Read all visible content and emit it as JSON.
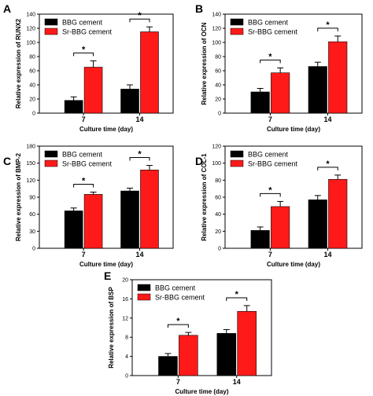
{
  "chart_data": [
    {
      "panel": "A",
      "type": "bar",
      "categories": [
        "7",
        "14"
      ],
      "xlabel": "Culture time (day)",
      "ylabel": "Relative expression of RUNX2",
      "ylim": [
        0,
        140
      ],
      "yticks": [
        0,
        20,
        40,
        60,
        80,
        100,
        120,
        140
      ],
      "series": [
        {
          "name": "BBG cement",
          "color": "#000000",
          "values": [
            18,
            34
          ],
          "errors": [
            5,
            6
          ]
        },
        {
          "name": "Sr-BBG cement",
          "color": "#ff1a1a",
          "values": [
            65,
            115
          ],
          "errors": [
            9,
            7
          ]
        }
      ],
      "significance": [
        {
          "category": "7",
          "mark": "*"
        },
        {
          "category": "14",
          "mark": "*"
        }
      ],
      "legend": "top-left"
    },
    {
      "panel": "B",
      "type": "bar",
      "categories": [
        "7",
        "14"
      ],
      "xlabel": "Culture time (day)",
      "ylabel": "Relative expression of OCN",
      "ylim": [
        0,
        140
      ],
      "yticks": [
        0,
        20,
        40,
        60,
        80,
        100,
        120,
        140
      ],
      "series": [
        {
          "name": "BBG cement",
          "color": "#000000",
          "values": [
            30,
            66
          ],
          "errors": [
            5,
            6
          ]
        },
        {
          "name": "Sr-BBG cement",
          "color": "#ff1a1a",
          "values": [
            57,
            101
          ],
          "errors": [
            7,
            8
          ]
        }
      ],
      "significance": [
        {
          "category": "7",
          "mark": "*"
        },
        {
          "category": "14",
          "mark": "*"
        }
      ],
      "legend": "top-left"
    },
    {
      "panel": "C",
      "type": "bar",
      "categories": [
        "7",
        "14"
      ],
      "xlabel": "Culture time (day)",
      "ylabel": "Relative expression of BMP-2",
      "ylim": [
        0,
        180
      ],
      "yticks": [
        0,
        30,
        60,
        90,
        120,
        150,
        180
      ],
      "series": [
        {
          "name": "BBG cement",
          "color": "#000000",
          "values": [
            66,
            101
          ],
          "errors": [
            5,
            5
          ]
        },
        {
          "name": "Sr-BBG cement",
          "color": "#ff1a1a",
          "values": [
            95,
            138
          ],
          "errors": [
            4,
            8
          ]
        }
      ],
      "significance": [
        {
          "category": "7",
          "mark": "*"
        },
        {
          "category": "14",
          "mark": "*"
        }
      ],
      "legend": "top-left"
    },
    {
      "panel": "D",
      "type": "bar",
      "categories": [
        "7",
        "14"
      ],
      "xlabel": "Culture time (day)",
      "ylabel": "Relative expression of COL-1",
      "ylim": [
        0,
        120
      ],
      "yticks": [
        0,
        20,
        40,
        60,
        80,
        100,
        120
      ],
      "series": [
        {
          "name": "BBG cement",
          "color": "#000000",
          "values": [
            21,
            57
          ],
          "errors": [
            4,
            5
          ]
        },
        {
          "name": "Sr-BBG cement",
          "color": "#ff1a1a",
          "values": [
            49,
            81
          ],
          "errors": [
            6,
            5
          ]
        }
      ],
      "significance": [
        {
          "category": "7",
          "mark": "*"
        },
        {
          "category": "14",
          "mark": "*"
        }
      ],
      "legend": "top-left"
    },
    {
      "panel": "E",
      "type": "bar",
      "categories": [
        "7",
        "14"
      ],
      "xlabel": "Culture time (day)",
      "ylabel": "Relative expression of BSP",
      "ylim": [
        0,
        20
      ],
      "yticks": [
        0,
        4,
        8,
        12,
        16,
        20
      ],
      "series": [
        {
          "name": "BBG cement",
          "color": "#000000",
          "values": [
            4.0,
            8.8
          ],
          "errors": [
            0.6,
            0.8
          ]
        },
        {
          "name": "Sr-BBG cement",
          "color": "#ff1a1a",
          "values": [
            8.4,
            13.4
          ],
          "errors": [
            0.6,
            1.2
          ]
        }
      ],
      "significance": [
        {
          "category": "7",
          "mark": "*"
        },
        {
          "category": "14",
          "mark": "*"
        }
      ],
      "legend": "top-left"
    }
  ]
}
